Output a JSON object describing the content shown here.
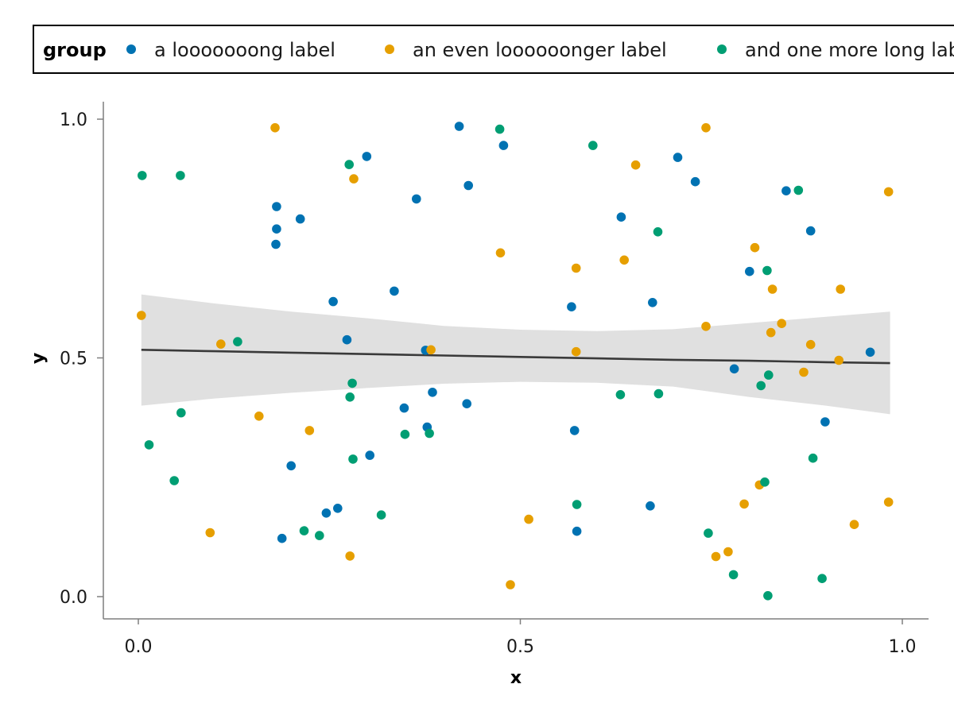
{
  "chart_data": {
    "type": "scatter",
    "title": "",
    "xlabel": "x",
    "ylabel": "y",
    "xlim": [
      0,
      1
    ],
    "ylim": [
      0,
      1
    ],
    "xticks": [
      0.0,
      0.5,
      1.0
    ],
    "yticks": [
      0.0,
      0.5,
      1.0
    ],
    "xtick_labels": [
      "0.0",
      "0.5",
      "1.0"
    ],
    "ytick_labels": [
      "0.0",
      "0.5",
      "1.0"
    ],
    "grid": false,
    "legend": {
      "title": "group",
      "placement": "top",
      "orientation": "horizontal"
    },
    "series": [
      {
        "name": "a looooooong label",
        "color": "#0072B2",
        "points": [
          [
            0.181,
            0.817
          ],
          [
            0.181,
            0.77
          ],
          [
            0.18,
            0.738
          ],
          [
            0.212,
            0.791
          ],
          [
            0.188,
            0.122
          ],
          [
            0.2,
            0.274
          ],
          [
            0.246,
            0.175
          ],
          [
            0.261,
            0.185
          ],
          [
            0.255,
            0.618
          ],
          [
            0.273,
            0.538
          ],
          [
            0.299,
            0.922
          ],
          [
            0.303,
            0.296
          ],
          [
            0.335,
            0.64
          ],
          [
            0.348,
            0.395
          ],
          [
            0.364,
            0.833
          ],
          [
            0.376,
            0.516
          ],
          [
            0.378,
            0.355
          ],
          [
            0.385,
            0.428
          ],
          [
            0.42,
            0.985
          ],
          [
            0.432,
            0.861
          ],
          [
            0.43,
            0.404
          ],
          [
            0.478,
            0.945
          ],
          [
            0.567,
            0.607
          ],
          [
            0.571,
            0.348
          ],
          [
            0.574,
            0.137
          ],
          [
            0.632,
            0.795
          ],
          [
            0.673,
            0.616
          ],
          [
            0.67,
            0.19
          ],
          [
            0.706,
            0.92
          ],
          [
            0.729,
            0.869
          ],
          [
            0.78,
            0.477
          ],
          [
            0.8,
            0.681
          ],
          [
            0.848,
            0.85
          ],
          [
            0.88,
            0.766
          ],
          [
            0.899,
            0.366
          ],
          [
            0.958,
            0.512
          ]
        ]
      },
      {
        "name": "an even loooooonger label",
        "color": "#E69F00",
        "points": [
          [
            0.004,
            0.589
          ],
          [
            0.094,
            0.134
          ],
          [
            0.108,
            0.529
          ],
          [
            0.158,
            0.378
          ],
          [
            0.179,
            0.982
          ],
          [
            0.224,
            0.348
          ],
          [
            0.277,
            0.085
          ],
          [
            0.282,
            0.875
          ],
          [
            0.383,
            0.517
          ],
          [
            0.474,
            0.72
          ],
          [
            0.487,
            0.025
          ],
          [
            0.511,
            0.162
          ],
          [
            0.573,
            0.688
          ],
          [
            0.573,
            0.513
          ],
          [
            0.636,
            0.705
          ],
          [
            0.651,
            0.904
          ],
          [
            0.743,
            0.982
          ],
          [
            0.743,
            0.566
          ],
          [
            0.756,
            0.084
          ],
          [
            0.772,
            0.094
          ],
          [
            0.793,
            0.194
          ],
          [
            0.807,
            0.731
          ],
          [
            0.813,
            0.234
          ],
          [
            0.828,
            0.553
          ],
          [
            0.83,
            0.644
          ],
          [
            0.842,
            0.572
          ],
          [
            0.871,
            0.47
          ],
          [
            0.88,
            0.528
          ],
          [
            0.917,
            0.495
          ],
          [
            0.919,
            0.644
          ],
          [
            0.937,
            0.151
          ],
          [
            0.982,
            0.848
          ],
          [
            0.982,
            0.198
          ]
        ]
      },
      {
        "name": "and one more long label",
        "color": "#009E73",
        "points": [
          [
            0.005,
            0.882
          ],
          [
            0.014,
            0.318
          ],
          [
            0.047,
            0.243
          ],
          [
            0.055,
            0.882
          ],
          [
            0.056,
            0.385
          ],
          [
            0.13,
            0.534
          ],
          [
            0.217,
            0.138
          ],
          [
            0.237,
            0.128
          ],
          [
            0.276,
            0.905
          ],
          [
            0.277,
            0.418
          ],
          [
            0.28,
            0.447
          ],
          [
            0.281,
            0.288
          ],
          [
            0.318,
            0.171
          ],
          [
            0.349,
            0.34
          ],
          [
            0.381,
            0.342
          ],
          [
            0.473,
            0.979
          ],
          [
            0.574,
            0.193
          ],
          [
            0.595,
            0.945
          ],
          [
            0.631,
            0.423
          ],
          [
            0.68,
            0.764
          ],
          [
            0.681,
            0.425
          ],
          [
            0.746,
            0.133
          ],
          [
            0.779,
            0.046
          ],
          [
            0.815,
            0.442
          ],
          [
            0.82,
            0.24
          ],
          [
            0.823,
            0.683
          ],
          [
            0.824,
            0.002
          ],
          [
            0.825,
            0.464
          ],
          [
            0.864,
            0.851
          ],
          [
            0.883,
            0.29
          ],
          [
            0.895,
            0.038
          ]
        ]
      }
    ],
    "trend": {
      "type": "linear",
      "color": "#3a3a3a",
      "band_color": "#e0e0e0",
      "x": [
        0.004,
        0.1,
        0.2,
        0.3,
        0.4,
        0.5,
        0.6,
        0.7,
        0.8,
        0.9,
        0.984
      ],
      "y": [
        0.517,
        0.514,
        0.511,
        0.508,
        0.505,
        0.502,
        0.499,
        0.496,
        0.494,
        0.491,
        0.489
      ],
      "upper": [
        0.633,
        0.614,
        0.597,
        0.583,
        0.567,
        0.559,
        0.556,
        0.56,
        0.573,
        0.586,
        0.597
      ],
      "lower": [
        0.4,
        0.415,
        0.427,
        0.437,
        0.446,
        0.45,
        0.448,
        0.44,
        0.418,
        0.4,
        0.382
      ]
    }
  }
}
